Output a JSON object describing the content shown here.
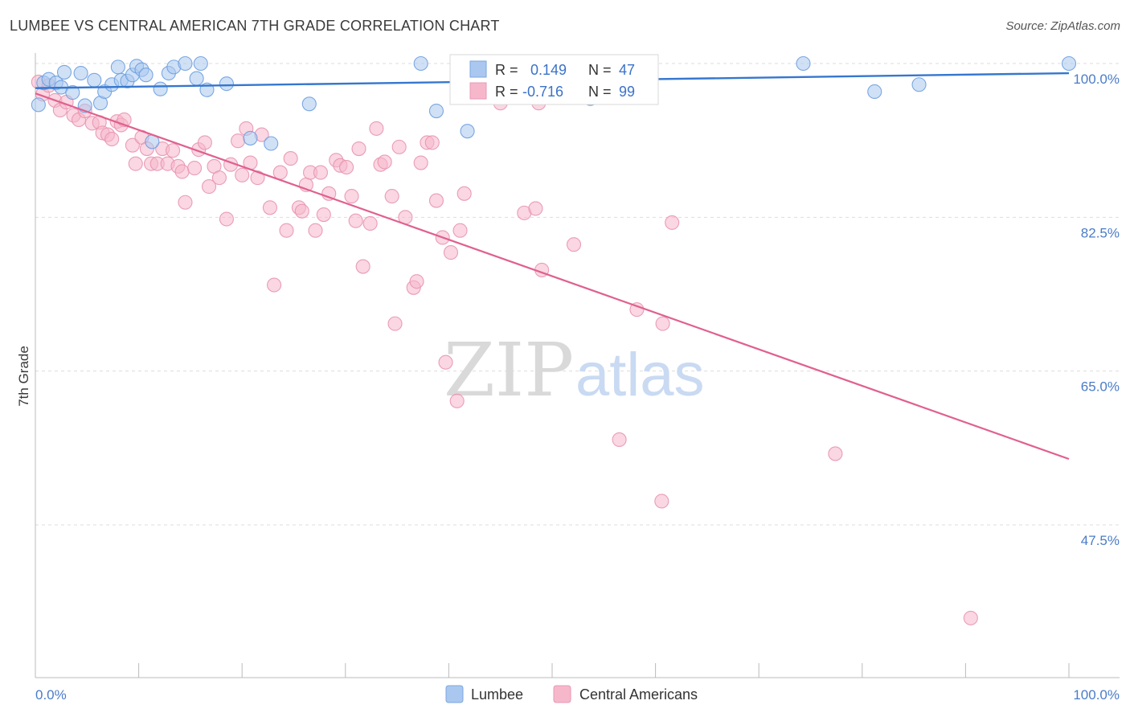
{
  "title": "LUMBEE VS CENTRAL AMERICAN 7TH GRADE CORRELATION CHART",
  "source": "Source: ZipAtlas.com",
  "colors": {
    "blue": "#4a86d8",
    "blue_fill": "#aac8ef",
    "pink": "#e0608f",
    "pink_fill": "#f6b7cb",
    "grid": "#dddddd",
    "tick_text": "#4a7cc9"
  },
  "legend": {
    "r_label": "R =",
    "n_label": "N =",
    "blue_r": "0.149",
    "blue_n": "47",
    "pink_r": "-0.716",
    "pink_n": "99"
  },
  "bottom_legend": {
    "blue_label": "Lumbee",
    "pink_label": "Central Americans"
  },
  "watermark": {
    "zip": "ZIP",
    "atlas": "atlas"
  },
  "chart_data": {
    "type": "scatter",
    "title": "LUMBEE VS CENTRAL AMERICAN 7TH GRADE CORRELATION CHART",
    "xlabel": "",
    "ylabel": "7th Grade",
    "xlim": [
      0,
      100
    ],
    "ylim": [
      30,
      100
    ],
    "x_tick_labels": [
      "0.0%",
      "100.0%"
    ],
    "y_ticks": [
      47.5,
      65.0,
      82.5,
      100.0
    ],
    "y_tick_labels": [
      "47.5%",
      "65.0%",
      "82.5%",
      "100.0%"
    ],
    "grid": true,
    "legend_position": "top-center",
    "series": [
      {
        "name": "Lumbee",
        "color": "#4a86d8",
        "trend": {
          "x": [
            0,
            100
          ],
          "y": [
            97.2,
            98.9
          ]
        },
        "points": [
          [
            0.3,
            95.3
          ],
          [
            0.8,
            97.8
          ],
          [
            1.3,
            98.2
          ],
          [
            2.0,
            97.8
          ],
          [
            2.5,
            97.3
          ],
          [
            2.8,
            99.0
          ],
          [
            3.6,
            96.7
          ],
          [
            4.4,
            98.9
          ],
          [
            4.8,
            95.2
          ],
          [
            5.7,
            98.1
          ],
          [
            6.3,
            95.5
          ],
          [
            6.7,
            96.8
          ],
          [
            7.4,
            97.6
          ],
          [
            8.0,
            99.6
          ],
          [
            8.3,
            98.1
          ],
          [
            8.9,
            98.0
          ],
          [
            9.4,
            98.7
          ],
          [
            9.8,
            99.7
          ],
          [
            10.3,
            99.3
          ],
          [
            10.7,
            98.7
          ],
          [
            11.3,
            91.1
          ],
          [
            12.1,
            97.1
          ],
          [
            12.9,
            98.9
          ],
          [
            13.4,
            99.6
          ],
          [
            14.5,
            100.0
          ],
          [
            15.6,
            98.3
          ],
          [
            16.0,
            100.0
          ],
          [
            16.6,
            97.0
          ],
          [
            18.5,
            97.7
          ],
          [
            20.8,
            91.5
          ],
          [
            22.8,
            90.9
          ],
          [
            26.5,
            95.4
          ],
          [
            37.3,
            100.0
          ],
          [
            38.8,
            94.6
          ],
          [
            41.8,
            92.3
          ],
          [
            53.7,
            96.0
          ],
          [
            54.6,
            100.0
          ],
          [
            56.8,
            99.2
          ],
          [
            74.3,
            100.0
          ],
          [
            81.2,
            96.8
          ],
          [
            85.5,
            97.6
          ],
          [
            100.0,
            100.0
          ]
        ]
      },
      {
        "name": "Central Americans",
        "color": "#e0608f",
        "trend": {
          "x": [
            0,
            100
          ],
          "y": [
            96.6,
            55.0
          ]
        },
        "points": [
          [
            0.3,
            97.9
          ],
          [
            0.7,
            96.5
          ],
          [
            1.3,
            97.5
          ],
          [
            1.9,
            95.8
          ],
          [
            2.4,
            94.7
          ],
          [
            3.0,
            95.6
          ],
          [
            3.7,
            94.1
          ],
          [
            4.2,
            93.6
          ],
          [
            4.8,
            94.6
          ],
          [
            5.5,
            93.2
          ],
          [
            6.2,
            93.3
          ],
          [
            6.5,
            92.1
          ],
          [
            7.0,
            91.9
          ],
          [
            7.4,
            91.4
          ],
          [
            7.9,
            93.4
          ],
          [
            8.3,
            93.0
          ],
          [
            8.6,
            93.6
          ],
          [
            9.4,
            90.7
          ],
          [
            9.7,
            88.6
          ],
          [
            10.3,
            91.6
          ],
          [
            10.8,
            90.3
          ],
          [
            11.2,
            88.6
          ],
          [
            11.8,
            88.6
          ],
          [
            12.3,
            90.3
          ],
          [
            12.8,
            88.6
          ],
          [
            13.3,
            90.1
          ],
          [
            13.8,
            88.3
          ],
          [
            14.2,
            87.7
          ],
          [
            14.5,
            84.2
          ],
          [
            15.4,
            88.1
          ],
          [
            15.8,
            90.2
          ],
          [
            16.4,
            91.0
          ],
          [
            16.8,
            86.0
          ],
          [
            17.3,
            88.3
          ],
          [
            17.8,
            87.0
          ],
          [
            18.5,
            82.3
          ],
          [
            18.9,
            88.5
          ],
          [
            19.6,
            91.2
          ],
          [
            20.0,
            87.3
          ],
          [
            20.4,
            92.6
          ],
          [
            20.8,
            88.7
          ],
          [
            21.5,
            87.0
          ],
          [
            21.9,
            91.9
          ],
          [
            22.7,
            83.6
          ],
          [
            23.1,
            74.8
          ],
          [
            23.7,
            87.6
          ],
          [
            24.3,
            81.0
          ],
          [
            24.7,
            89.2
          ],
          [
            25.5,
            83.6
          ],
          [
            25.8,
            83.2
          ],
          [
            26.2,
            86.2
          ],
          [
            26.6,
            87.6
          ],
          [
            27.1,
            81.0
          ],
          [
            27.6,
            87.6
          ],
          [
            27.9,
            82.8
          ],
          [
            28.4,
            85.2
          ],
          [
            29.1,
            89.0
          ],
          [
            29.5,
            88.4
          ],
          [
            30.1,
            88.2
          ],
          [
            30.6,
            84.9
          ],
          [
            31.0,
            82.1
          ],
          [
            31.3,
            90.3
          ],
          [
            31.7,
            76.9
          ],
          [
            32.4,
            81.8
          ],
          [
            33.0,
            92.6
          ],
          [
            33.4,
            88.5
          ],
          [
            33.8,
            88.8
          ],
          [
            34.5,
            84.9
          ],
          [
            34.8,
            70.4
          ],
          [
            35.2,
            90.5
          ],
          [
            35.8,
            82.5
          ],
          [
            36.6,
            74.5
          ],
          [
            36.9,
            75.2
          ],
          [
            37.3,
            88.7
          ],
          [
            37.9,
            91.0
          ],
          [
            38.4,
            91.0
          ],
          [
            38.8,
            84.4
          ],
          [
            39.4,
            80.2
          ],
          [
            39.7,
            66.0
          ],
          [
            40.2,
            78.5
          ],
          [
            40.8,
            61.6
          ],
          [
            41.1,
            81.0
          ],
          [
            41.5,
            85.2
          ],
          [
            45.0,
            95.5
          ],
          [
            47.3,
            83.0
          ],
          [
            48.4,
            83.5
          ],
          [
            49.0,
            76.5
          ],
          [
            48.7,
            95.5
          ],
          [
            52.1,
            79.4
          ],
          [
            56.5,
            57.2
          ],
          [
            58.2,
            72.0
          ],
          [
            60.6,
            50.2
          ],
          [
            60.7,
            70.4
          ],
          [
            61.6,
            81.9
          ],
          [
            77.4,
            55.6
          ],
          [
            90.5,
            36.9
          ]
        ]
      }
    ]
  },
  "y_axis_title": "7th Grade"
}
